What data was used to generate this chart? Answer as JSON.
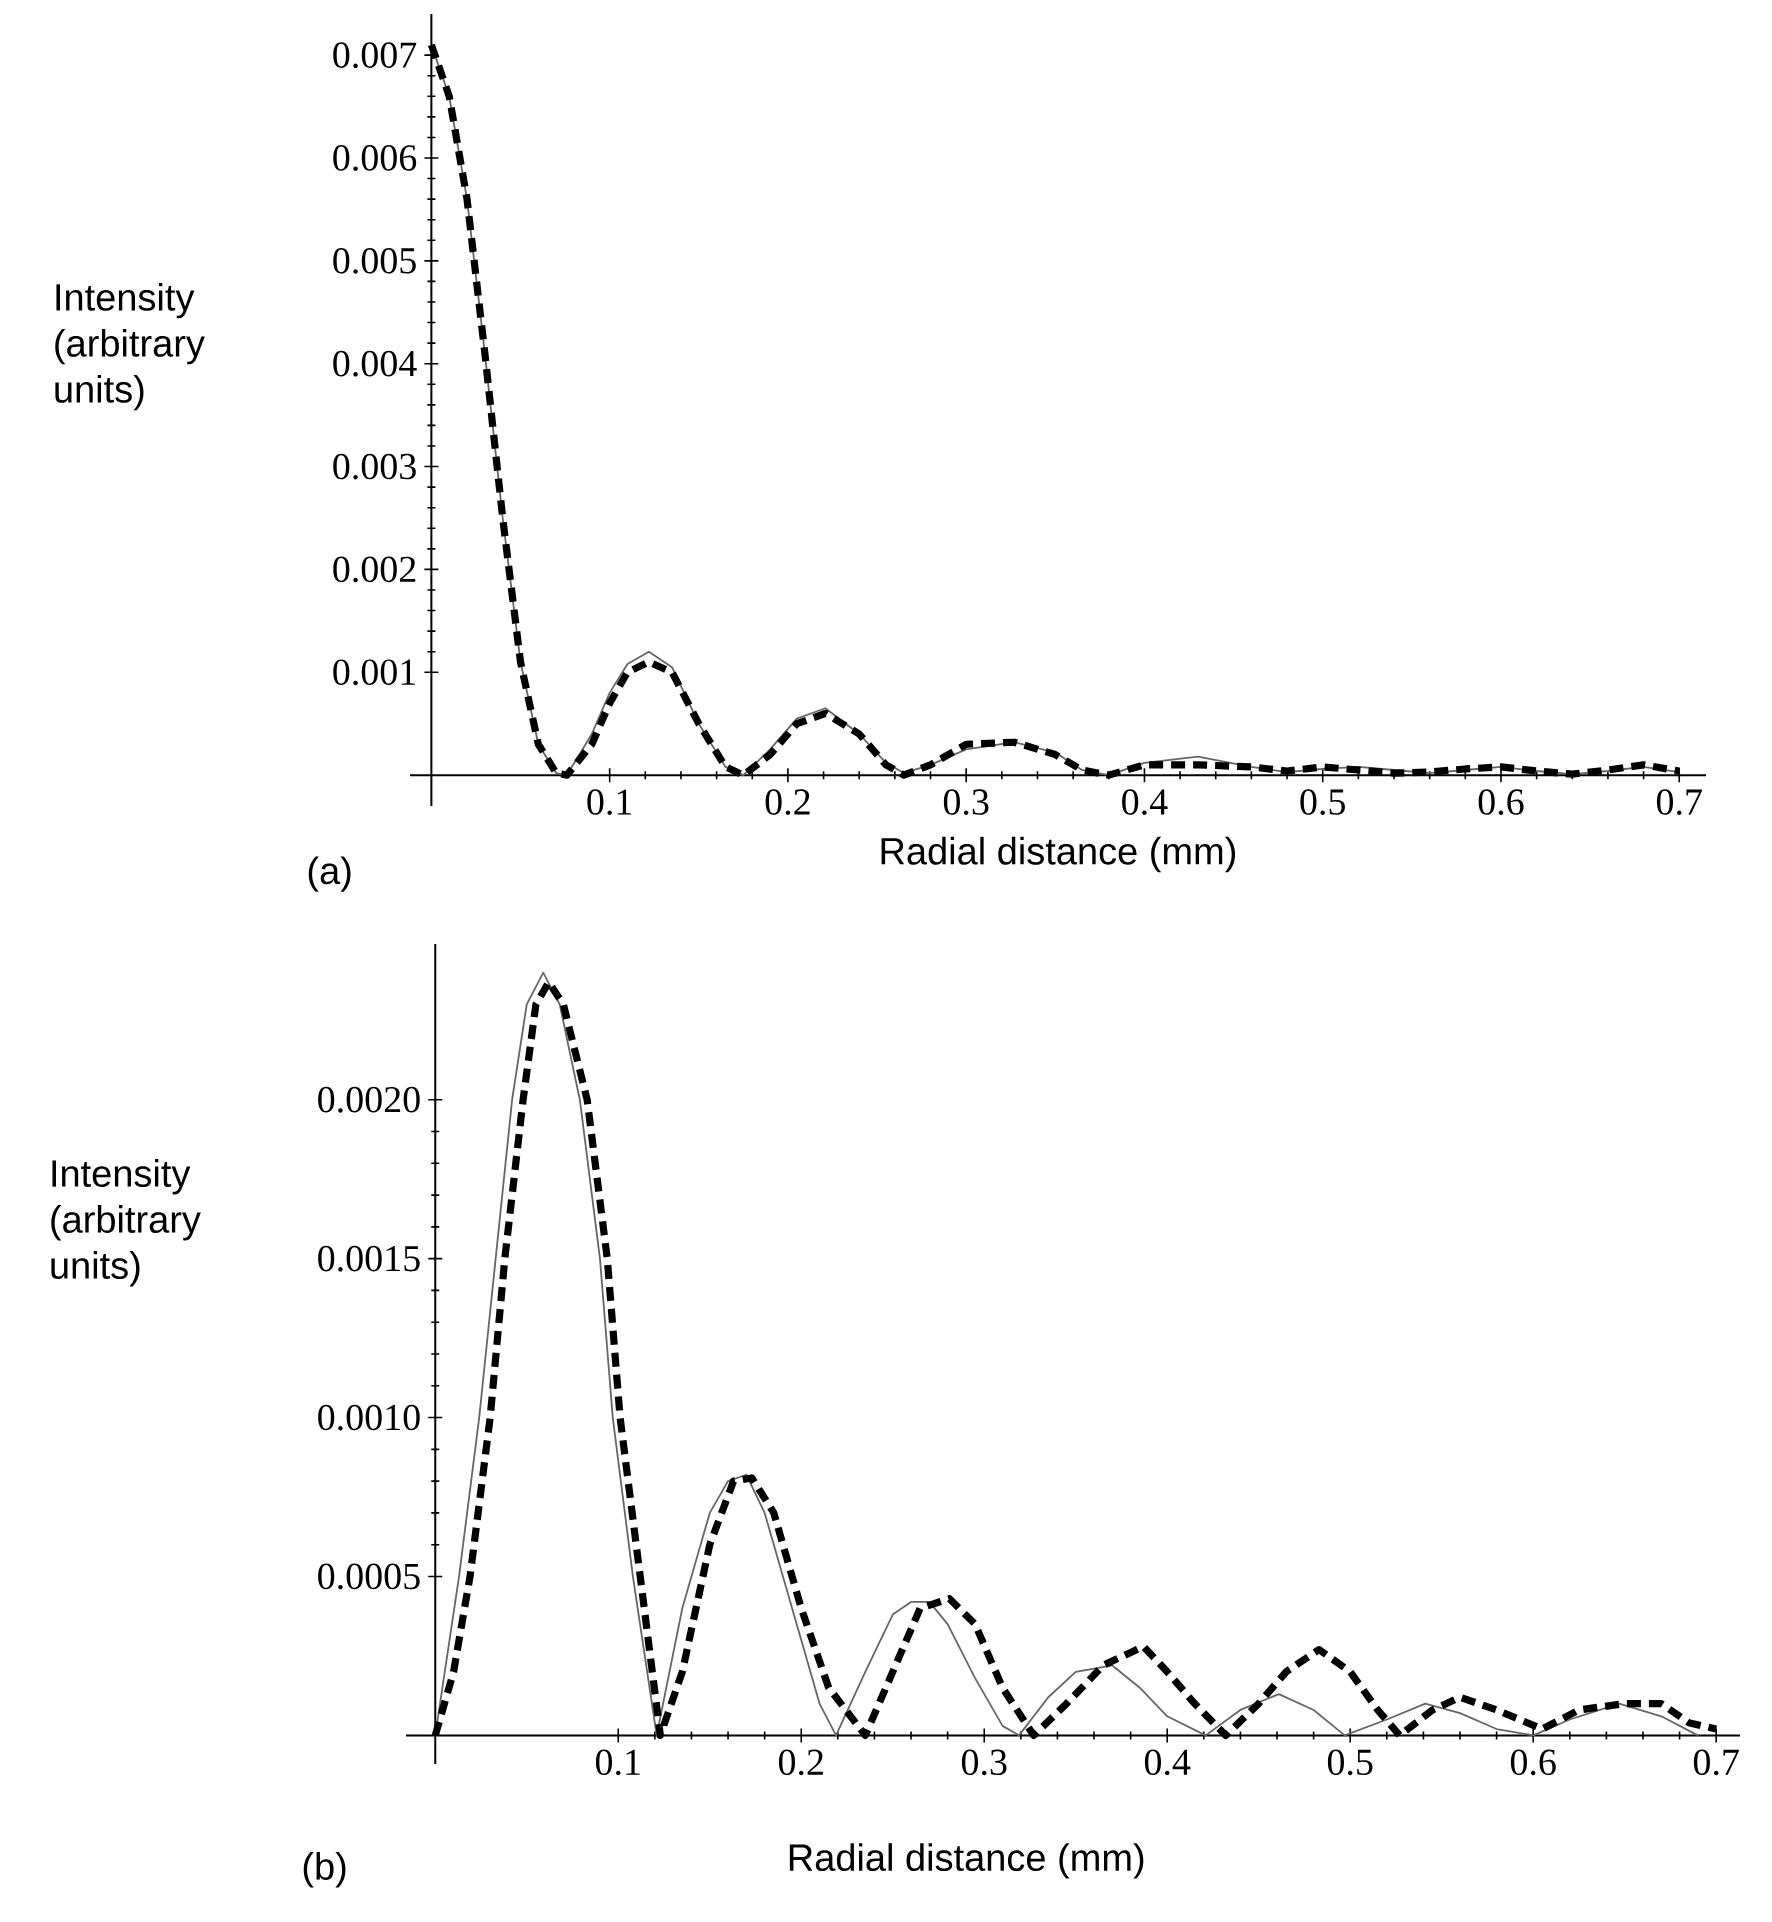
{
  "chart_data": [
    {
      "type": "line",
      "xlabel": "Radial distance (mm)",
      "ylabel": "Intensity (arbitrary units)",
      "annotations": [
        "(a)"
      ],
      "xlim": [
        -0.012,
        0.715
      ],
      "ylim": [
        -0.0003,
        0.0074
      ],
      "xticks": [
        0.1,
        0.2,
        0.3,
        0.4,
        0.5,
        0.6,
        0.7
      ],
      "yticks": [
        0.001,
        0.002,
        0.003,
        0.004,
        0.005,
        0.006,
        0.007
      ],
      "series": [
        {
          "color": "#666666",
          "line_style": "solid",
          "x": [
            0,
            0.01,
            0.02,
            0.03,
            0.04,
            0.05,
            0.06,
            0.07,
            0.076,
            0.09,
            0.1,
            0.11,
            0.122,
            0.135,
            0.15,
            0.165,
            0.175,
            0.19,
            0.205,
            0.221,
            0.24,
            0.255,
            0.265,
            0.28,
            0.3,
            0.327,
            0.35,
            0.365,
            0.38,
            0.4,
            0.43,
            0.46,
            0.48,
            0.5,
            0.52,
            0.54,
            0.56,
            0.58,
            0.6,
            0.62,
            0.64,
            0.66,
            0.68,
            0.7
          ],
          "values": [
            0.0071,
            0.0066,
            0.0056,
            0.0041,
            0.0025,
            0.0011,
            0.0003,
            2e-05,
            0,
            0.0004,
            0.0008,
            0.00108,
            0.0012,
            0.00105,
            0.0005,
            8e-05,
            0,
            0.00025,
            0.00055,
            0.00065,
            0.0004,
            0.00012,
            2e-05,
            0.0001,
            0.00025,
            0.00032,
            0.00022,
            5e-05,
            0,
            0.00012,
            0.00018,
            8e-05,
            3e-05,
            6e-05,
            8e-05,
            5e-05,
            2e-05,
            5e-05,
            8e-05,
            4e-05,
            1e-05,
            4e-05,
            8e-05,
            3e-05
          ]
        },
        {
          "color": "#000000",
          "line_style": "dashed",
          "x": [
            0,
            0.01,
            0.02,
            0.03,
            0.04,
            0.05,
            0.06,
            0.07,
            0.076,
            0.09,
            0.1,
            0.11,
            0.122,
            0.135,
            0.15,
            0.165,
            0.175,
            0.19,
            0.205,
            0.221,
            0.24,
            0.255,
            0.265,
            0.28,
            0.3,
            0.327,
            0.35,
            0.365,
            0.38,
            0.4,
            0.43,
            0.46,
            0.48,
            0.5,
            0.52,
            0.54,
            0.56,
            0.58,
            0.6,
            0.62,
            0.64,
            0.66,
            0.68,
            0.7
          ],
          "values": [
            0.0071,
            0.0066,
            0.0056,
            0.0041,
            0.0025,
            0.0011,
            0.0003,
            2e-05,
            0,
            0.0003,
            0.0007,
            0.001,
            0.0011,
            0.001,
            0.0005,
            8e-05,
            0,
            0.0002,
            0.0005,
            0.0006,
            0.0004,
            0.0001,
            0,
            0.0001,
            0.0003,
            0.00032,
            0.0002,
            5e-05,
            0,
            0.0001,
            0.0001,
            8e-05,
            4e-05,
            8e-05,
            5e-05,
            2e-05,
            3e-05,
            6e-05,
            8e-05,
            4e-05,
            1e-05,
            5e-05,
            0.0001,
            4e-05
          ]
        }
      ]
    },
    {
      "type": "line",
      "xlabel": "Radial distance (mm)",
      "ylabel": "Intensity (arbitrary units)",
      "annotations": [
        "(b)"
      ],
      "xlim": [
        -0.016,
        0.713
      ],
      "ylim": [
        -9e-05,
        0.00249
      ],
      "xticks": [
        0.1,
        0.2,
        0.3,
        0.4,
        0.5,
        0.6,
        0.7
      ],
      "yticks": [
        0.0005,
        {
          "value": 0.001,
          "label": "0.0010"
        },
        0.0015,
        {
          "value": 0.002,
          "label": "0.0020"
        }
      ],
      "series": [
        {
          "color": "#666666",
          "line_style": "solid",
          "x": [
            0,
            0.013,
            0.024,
            0.033,
            0.042,
            0.05,
            0.059,
            0.068,
            0.079,
            0.09,
            0.097,
            0.108,
            0.121,
            0.135,
            0.15,
            0.16,
            0.17,
            0.18,
            0.195,
            0.21,
            0.219,
            0.235,
            0.25,
            0.26,
            0.27,
            0.28,
            0.295,
            0.31,
            0.319,
            0.335,
            0.35,
            0.37,
            0.385,
            0.4,
            0.421,
            0.44,
            0.461,
            0.48,
            0.497,
            0.52,
            0.541,
            0.56,
            0.58,
            0.6,
            0.62,
            0.647,
            0.67,
            0.69
          ],
          "values": [
            0,
            0.0005,
            0.001,
            0.0015,
            0.002,
            0.0023,
            0.0024,
            0.0023,
            0.002,
            0.0015,
            0.001,
            0.0005,
            0,
            0.0004,
            0.0007,
            0.0008,
            0.00082,
            0.0007,
            0.0004,
            0.0001,
            0,
            0.0002,
            0.00038,
            0.00042,
            0.00042,
            0.00035,
            0.00018,
            3e-05,
            0,
            0.00012,
            0.0002,
            0.00022,
            0.00015,
            6e-05,
            0,
            8e-05,
            0.00013,
            8e-05,
            0,
            5e-05,
            0.0001,
            7e-05,
            2e-05,
            0,
            5e-05,
            0.0001,
            6e-05,
            0
          ]
        },
        {
          "color": "#000000",
          "line_style": "dashed",
          "x": [
            0,
            0.01,
            0.019,
            0.03,
            0.038,
            0.048,
            0.055,
            0.062,
            0.07,
            0.083,
            0.094,
            0.101,
            0.112,
            0.123,
            0.135,
            0.15,
            0.163,
            0.173,
            0.185,
            0.2,
            0.215,
            0.235,
            0.25,
            0.265,
            0.281,
            0.295,
            0.31,
            0.327,
            0.345,
            0.365,
            0.387,
            0.4,
            0.415,
            0.432,
            0.45,
            0.465,
            0.483,
            0.5,
            0.515,
            0.527,
            0.545,
            0.56,
            0.58,
            0.605,
            0.625,
            0.65,
            0.67,
            0.685,
            0.7
          ],
          "values": [
            0,
            0.0002,
            0.0005,
            0.001,
            0.0015,
            0.002,
            0.0023,
            0.00237,
            0.0023,
            0.002,
            0.0015,
            0.001,
            0.0005,
            0,
            0.0002,
            0.0006,
            0.0008,
            0.00081,
            0.0007,
            0.0004,
            0.00015,
            0,
            0.0002,
            0.0004,
            0.00043,
            0.00035,
            0.00015,
            0,
            0.0001,
            0.00022,
            0.00028,
            0.0002,
            0.0001,
            0,
            0.0001,
            0.0002,
            0.00027,
            0.0002,
            8e-05,
            0,
            8e-05,
            0.00012,
            8e-05,
            2e-05,
            8e-05,
            0.0001,
            0.0001,
            4e-05,
            2e-05
          ]
        }
      ]
    }
  ]
}
